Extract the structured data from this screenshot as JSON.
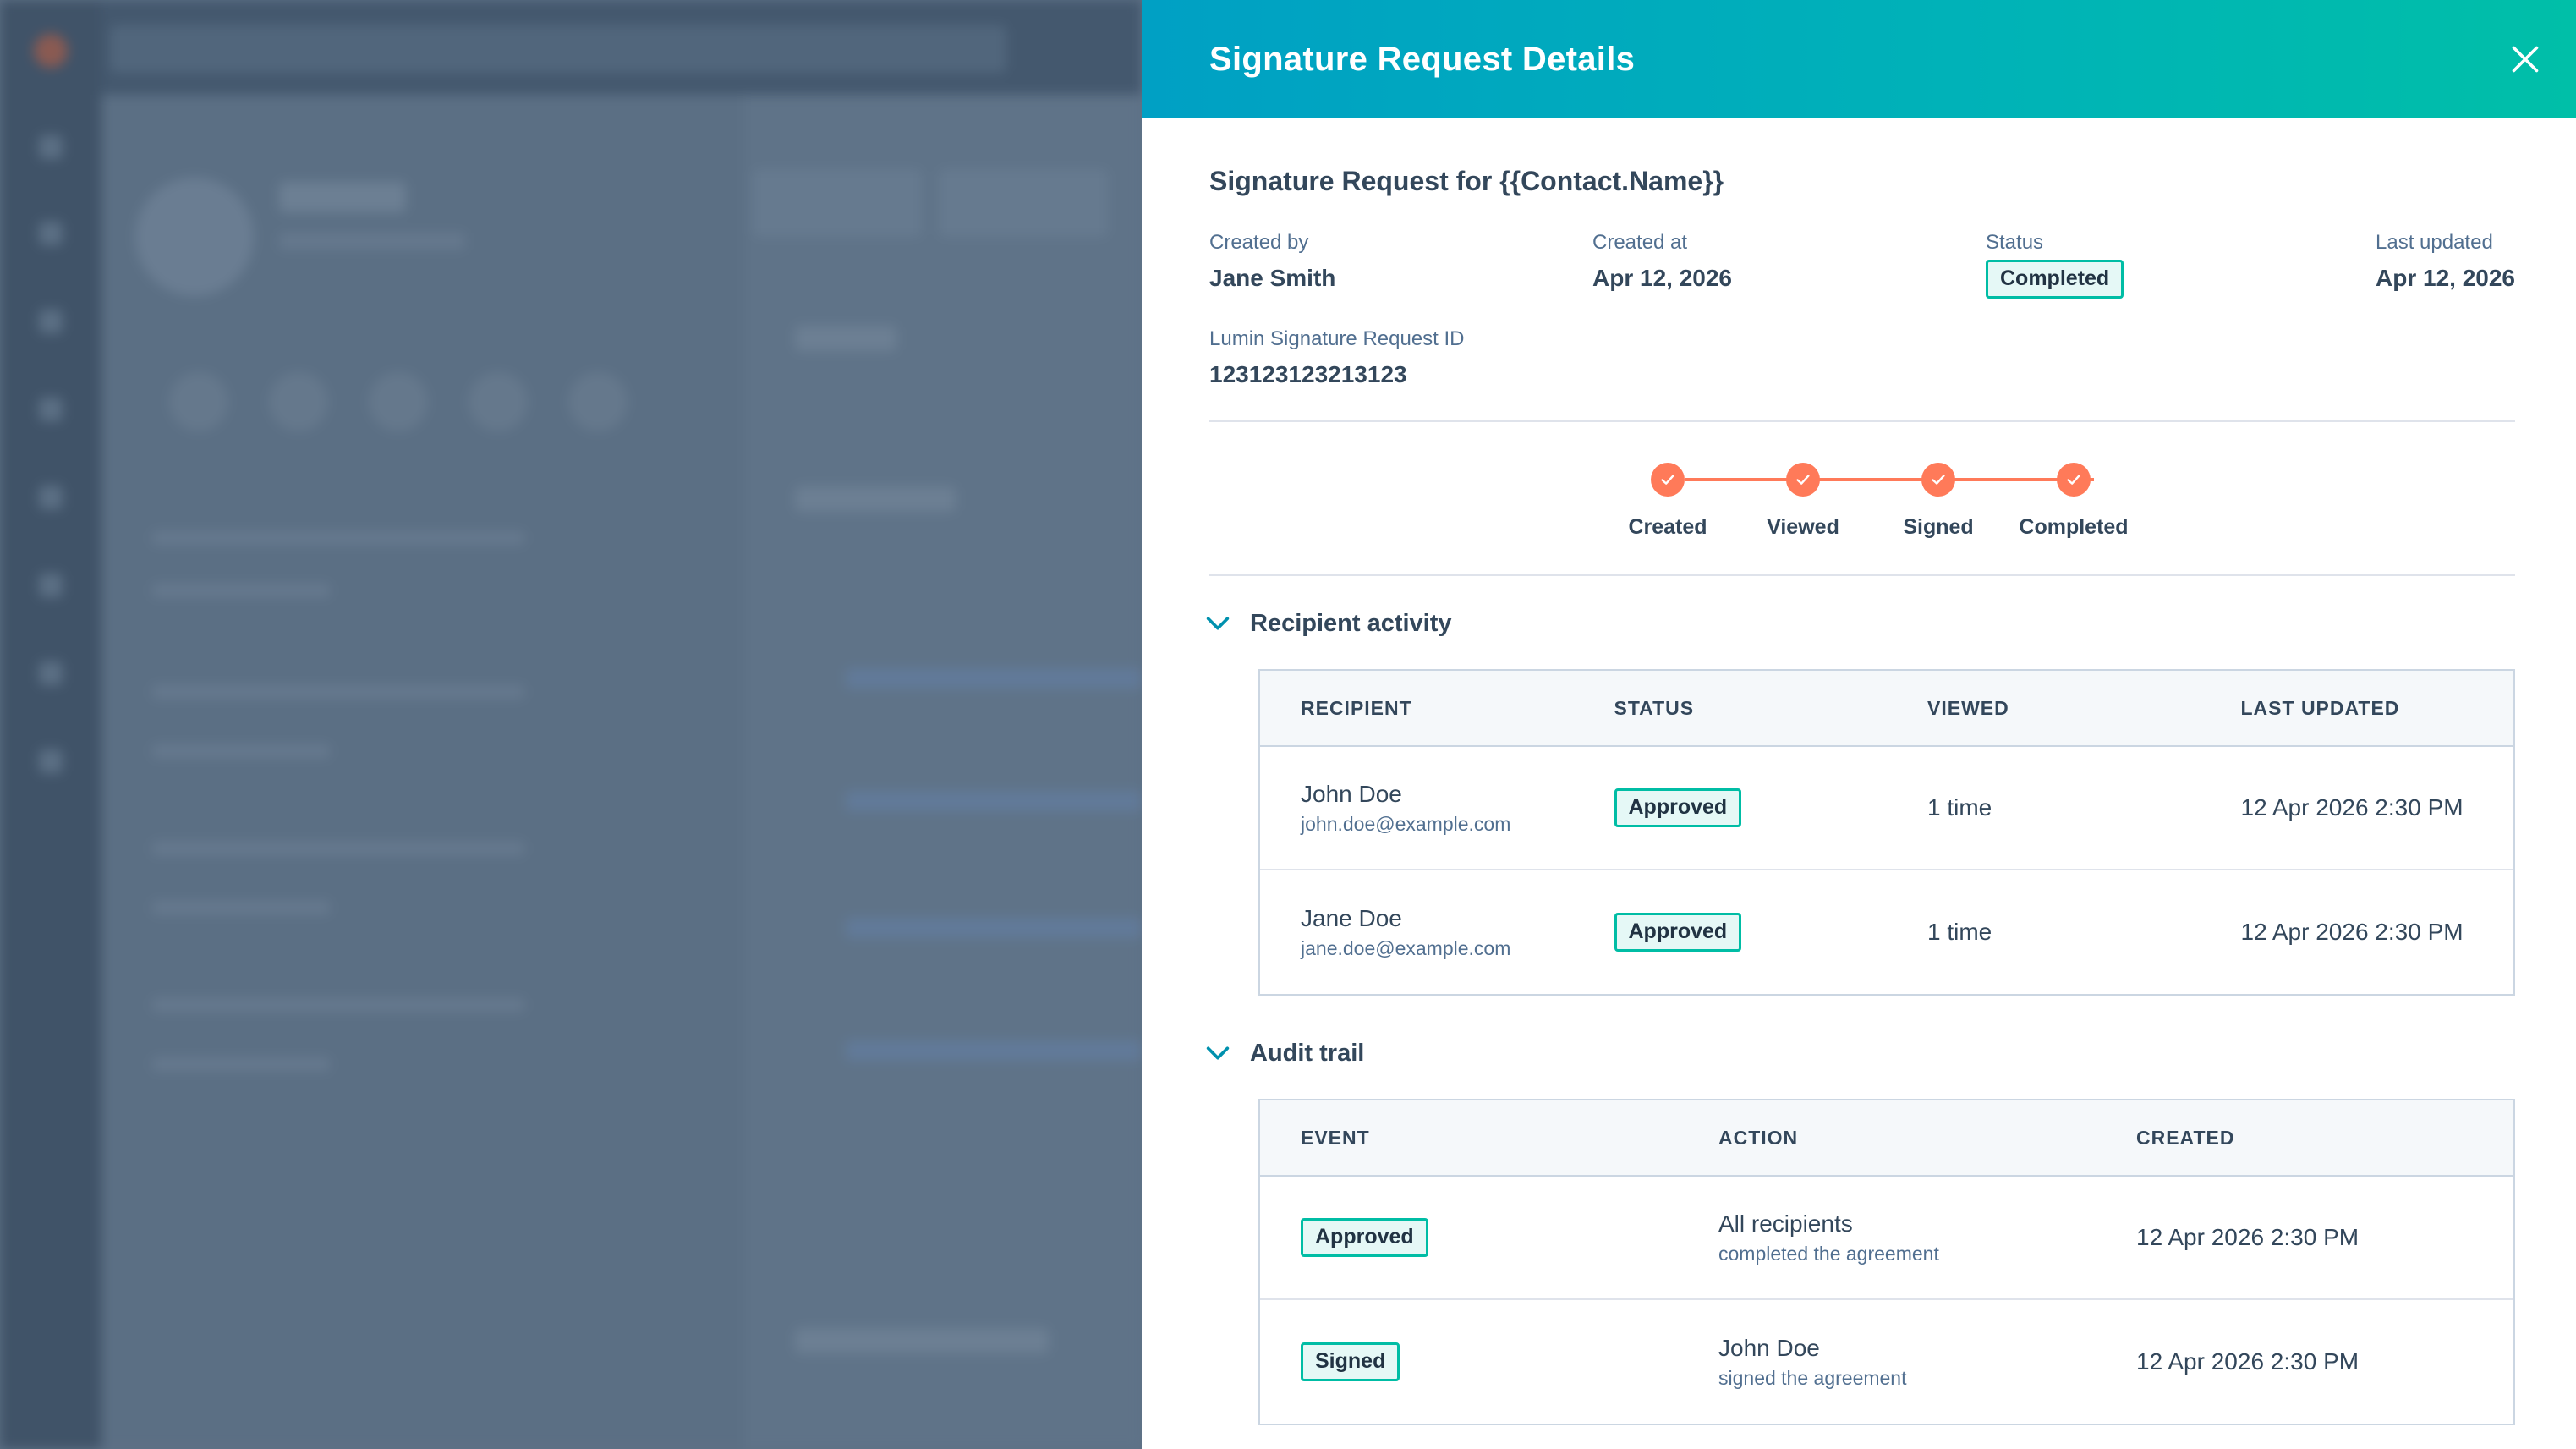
{
  "drawer": {
    "title": "Signature Request Details"
  },
  "request": {
    "title": "Signature Request for {{Contact.Name}}",
    "created_by_label": "Created by",
    "created_by": "Jane Smith",
    "created_at_label": "Created at",
    "created_at": "Apr 12, 2026",
    "status_label": "Status",
    "status": "Completed",
    "last_updated_label": "Last updated",
    "last_updated": "Apr 12, 2026",
    "id_label": "Lumin Signature Request ID",
    "id": "123123123213123"
  },
  "progress": {
    "steps": [
      "Created",
      "Viewed",
      "Signed",
      "Completed"
    ],
    "color": "#ff7a59"
  },
  "recipient_activity": {
    "label": "Recipient activity",
    "columns": [
      "RECIPIENT",
      "STATUS",
      "VIEWED",
      "LAST UPDATED"
    ],
    "rows": [
      {
        "name": "John Doe",
        "email": "john.doe@example.com",
        "status": "Approved",
        "viewed": "1 time",
        "last_updated": "12 Apr 2026 2:30 PM"
      },
      {
        "name": "Jane Doe",
        "email": "jane.doe@example.com",
        "status": "Approved",
        "viewed": "1 time",
        "last_updated": "12 Apr 2026 2:30 PM"
      }
    ]
  },
  "audit_trail": {
    "label": "Audit trail",
    "columns": [
      "EVENT",
      "ACTION",
      "CREATED"
    ],
    "rows": [
      {
        "event": "Approved",
        "action": "All recipients",
        "action_detail": "completed the agreement",
        "created": "12 Apr 2026 2:30 PM"
      },
      {
        "event": "Signed",
        "action": "John Doe",
        "action_detail": "signed the agreement",
        "created": "12 Apr 2026 2:30 PM"
      }
    ]
  },
  "colors": {
    "header_gradient_start": "#00a0c4",
    "header_gradient_end": "#00bfa8",
    "tag_border": "#00bda5",
    "tag_bg": "#e5f8f6",
    "text_dark": "#33475b",
    "overlay": "#5e7186"
  }
}
